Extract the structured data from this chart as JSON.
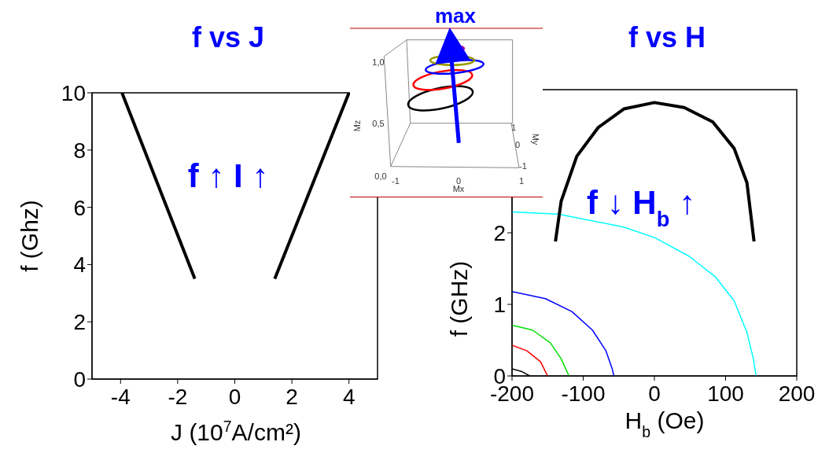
{
  "chart_data": [
    {
      "type": "line",
      "title": "f vs J",
      "xlabel": "J  (10$^{7}$A/cm²)",
      "ylabel": "f (Ghz)",
      "annotations": [
        "f ↑ I ↑"
      ],
      "xlim": [
        -5,
        5
      ],
      "xticks": [
        -4,
        -2,
        0,
        2,
        4
      ],
      "ylim": [
        0,
        10
      ],
      "yticks": [
        0,
        2,
        4,
        6,
        8,
        10
      ],
      "series": [
        {
          "color": "#000000",
          "x": [
            -3.95,
            -1.4
          ],
          "values": [
            10,
            3.5
          ]
        },
        {
          "color": "#000000",
          "x": [
            1.4,
            4
          ],
          "values": [
            3.5,
            10
          ]
        }
      ]
    },
    {
      "type": "other",
      "xlabel": "Mx",
      "ylabel": "Mz",
      "annotations": [
        "max",
        "1,0",
        "0,5",
        "0,0",
        "-1",
        "0",
        "1",
        "1",
        "0",
        "-1",
        "My"
      ]
    },
    {
      "type": "line",
      "title": "f vs H",
      "xlabel": "H$_{b}$ (Oe)",
      "ylabel": "f (GHz)",
      "annotations": [
        "f ↓ H$_{b}$ ↑"
      ],
      "xlim": [
        -200,
        200
      ],
      "xticks": [
        -200,
        -100,
        0,
        100,
        200
      ],
      "ylim": [
        0,
        4
      ],
      "yticks": [
        0,
        1,
        2
      ],
      "series": [
        {
          "color": "#00ffff",
          "x": [
            -200,
            -135,
            -43,
            1,
            49,
            86,
            112,
            130,
            139,
            143
          ],
          "values": [
            2.29,
            2.26,
            2.08,
            1.93,
            1.67,
            1.38,
            1.05,
            0.61,
            0.24,
            0
          ]
        },
        {
          "color": "#0000ff",
          "x": [
            -200,
            -153,
            -116,
            -87,
            -68,
            -59,
            -57
          ],
          "values": [
            1.18,
            1.08,
            0.9,
            0.64,
            0.35,
            0.09,
            0
          ]
        },
        {
          "color": "#00e000",
          "x": [
            -200,
            -171,
            -146,
            -131,
            -120
          ],
          "values": [
            0.71,
            0.64,
            0.46,
            0.24,
            0
          ]
        },
        {
          "color": "#ff0000",
          "x": [
            -200,
            -179,
            -160,
            -150
          ],
          "values": [
            0.43,
            0.35,
            0.2,
            0
          ]
        },
        {
          "color": "#000000",
          "x": [
            -200,
            -186,
            -175
          ],
          "values": [
            0.1,
            0.06,
            0
          ]
        },
        {
          "color": "#000000",
          "x": [
            -139,
            -131,
            -109,
            -79,
            -43,
            0,
            42,
            82,
            112,
            130,
            140
          ],
          "values": [
            1.88,
            2.44,
            3.07,
            3.47,
            3.73,
            3.82,
            3.75,
            3.55,
            3.18,
            2.7,
            1.88
          ]
        }
      ]
    }
  ]
}
